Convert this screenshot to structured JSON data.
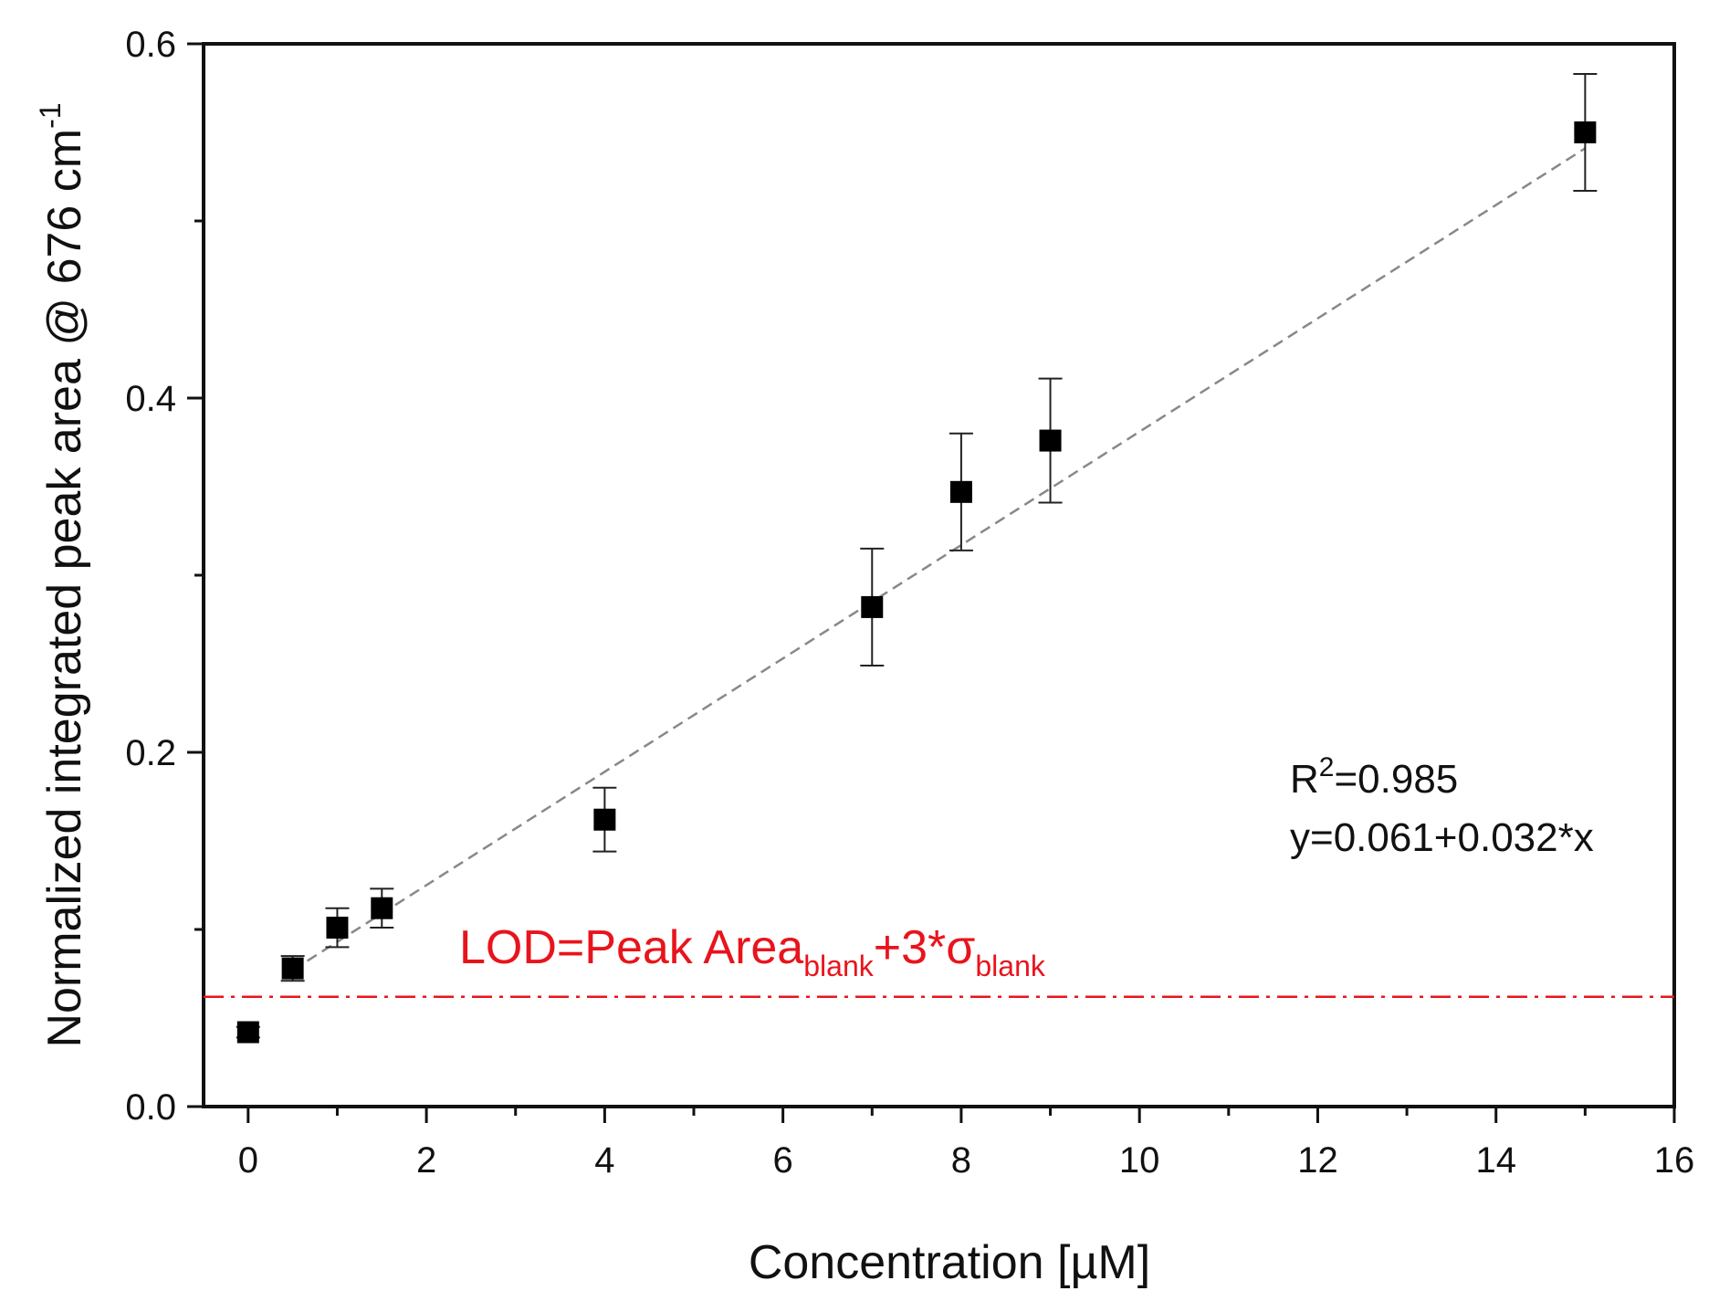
{
  "chart_data": {
    "type": "scatter",
    "xlabel": "Concentration [µM]",
    "ylabel": "Normalized integrated peak area @ 676 cm",
    "ylabel_sup": "-1",
    "xlim": [
      -0.5,
      16
    ],
    "ylim": [
      0,
      0.6
    ],
    "x_ticks": [
      0,
      2,
      4,
      6,
      8,
      10,
      12,
      14,
      16
    ],
    "x_tick_labels": [
      "0",
      "2",
      "4",
      "6",
      "8",
      "10",
      "12",
      "14",
      "16"
    ],
    "y_ticks": [
      0.0,
      0.2,
      0.4,
      0.6
    ],
    "y_tick_labels": [
      "0.0",
      "0.2",
      "0.4",
      "0.6"
    ],
    "grid": false,
    "series": [
      {
        "marker": "square",
        "color": "#000000",
        "x": [
          0,
          0.5,
          1,
          1.5,
          4,
          7,
          8,
          9,
          15
        ],
        "y": [
          0.042,
          0.078,
          0.101,
          0.112,
          0.162,
          0.282,
          0.347,
          0.376,
          0.55
        ],
        "yerr": [
          0.003,
          0.007,
          0.011,
          0.011,
          0.018,
          0.033,
          0.033,
          0.035,
          0.033
        ]
      }
    ],
    "fit": {
      "intercept": 0.061,
      "slope": 0.032,
      "x_range": [
        0.5,
        15
      ],
      "color": "#888888",
      "style": "dashed"
    },
    "lod": {
      "y": 0.062,
      "color": "#e8141c",
      "style": "dash-dot",
      "label_main": "LOD=Peak Area",
      "label_sub1": "blank",
      "label_mid": "+3*σ",
      "label_sub2": "blank"
    },
    "annotations": {
      "r2_prefix": "R",
      "r2_sup": "2",
      "r2_value": "=0.985",
      "equation": "y=0.061+0.032*x"
    }
  }
}
